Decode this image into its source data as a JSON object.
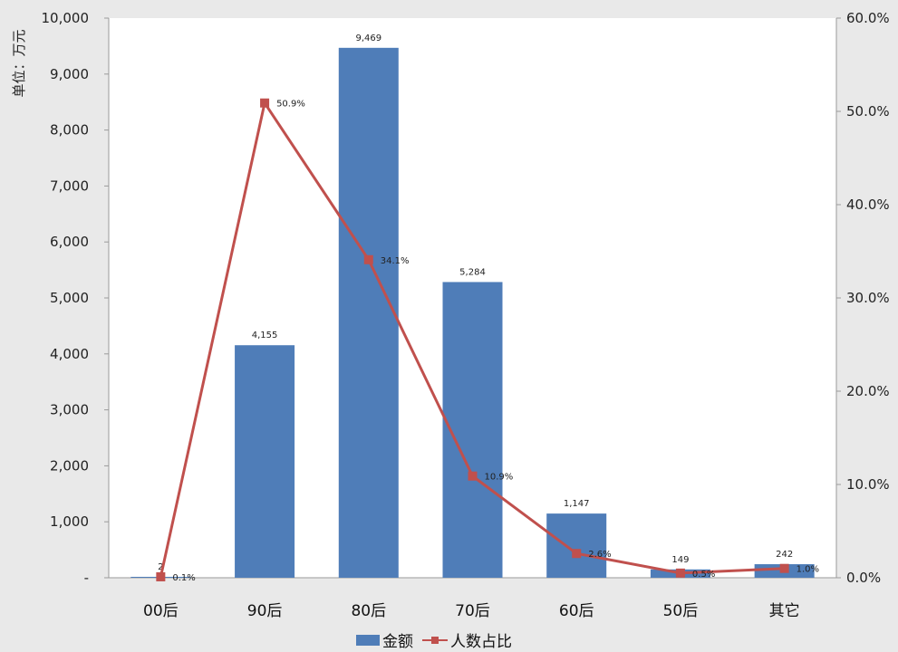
{
  "chart_data": {
    "type": "bar",
    "categories": [
      "00后",
      "90后",
      "80后",
      "70后",
      "60后",
      "50后",
      "其它"
    ],
    "series": [
      {
        "name": "金额",
        "type": "bar",
        "axis": "left",
        "values": [
          2,
          4155,
          9469,
          5284,
          1147,
          149,
          242
        ],
        "labels": [
          "2",
          "4,155",
          "9,469",
          "5,284",
          "1,147",
          "149",
          "242"
        ],
        "color": "#4f7db8"
      },
      {
        "name": "人数占比",
        "type": "line",
        "axis": "right",
        "values": [
          0.1,
          50.9,
          34.1,
          10.9,
          2.6,
          0.5,
          1.0
        ],
        "labels": [
          "0.1%",
          "50.9%",
          "34.1%",
          "10.9%",
          "2.6%",
          "0.5%",
          "1.0%"
        ],
        "color": "#c0504d"
      }
    ],
    "ylabel": "单位：万元",
    "ylim": [
      0,
      10000
    ],
    "y_ticks": [
      "-",
      "1,000",
      "2,000",
      "3,000",
      "4,000",
      "5,000",
      "6,000",
      "7,000",
      "8,000",
      "9,000",
      "10,000"
    ],
    "y2lim": [
      0,
      60
    ],
    "y2_ticks": [
      "0.0%",
      "10.0%",
      "20.0%",
      "30.0%",
      "40.0%",
      "50.0%",
      "60.0%"
    ],
    "grid": false,
    "legend": "bottom-center"
  }
}
